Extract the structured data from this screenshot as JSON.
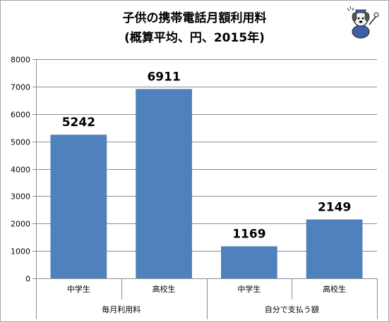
{
  "chart_data": {
    "type": "bar",
    "title": "子供の携帯電話月額利用料",
    "subtitle": "(概算平均、円、2015年)",
    "categories": [
      "中学生",
      "高校生",
      "中学生",
      "高校生"
    ],
    "groups": [
      {
        "name": "毎月利用料",
        "categories": [
          "中学生",
          "高校生"
        ]
      },
      {
        "name": "自分で支払う額",
        "categories": [
          "中学生",
          "高校生"
        ]
      }
    ],
    "values": [
      5242,
      6911,
      1169,
      2149
    ],
    "data_labels": [
      "5242",
      "6911",
      "1169",
      "2149"
    ],
    "ylim": [
      0,
      8000
    ],
    "yticks": [
      "0",
      "1000",
      "2000",
      "3000",
      "4000",
      "5000",
      "6000",
      "7000",
      "8000"
    ],
    "grid": true,
    "legend": "none",
    "xlabel": "",
    "ylabel": ""
  },
  "colors": {
    "bar": "#4f81bd",
    "grid": "#8c8c8c",
    "axis": "#8c8c8c",
    "text": "#000000"
  },
  "mascot_icon": "cartoon-dog-mascot-icon"
}
